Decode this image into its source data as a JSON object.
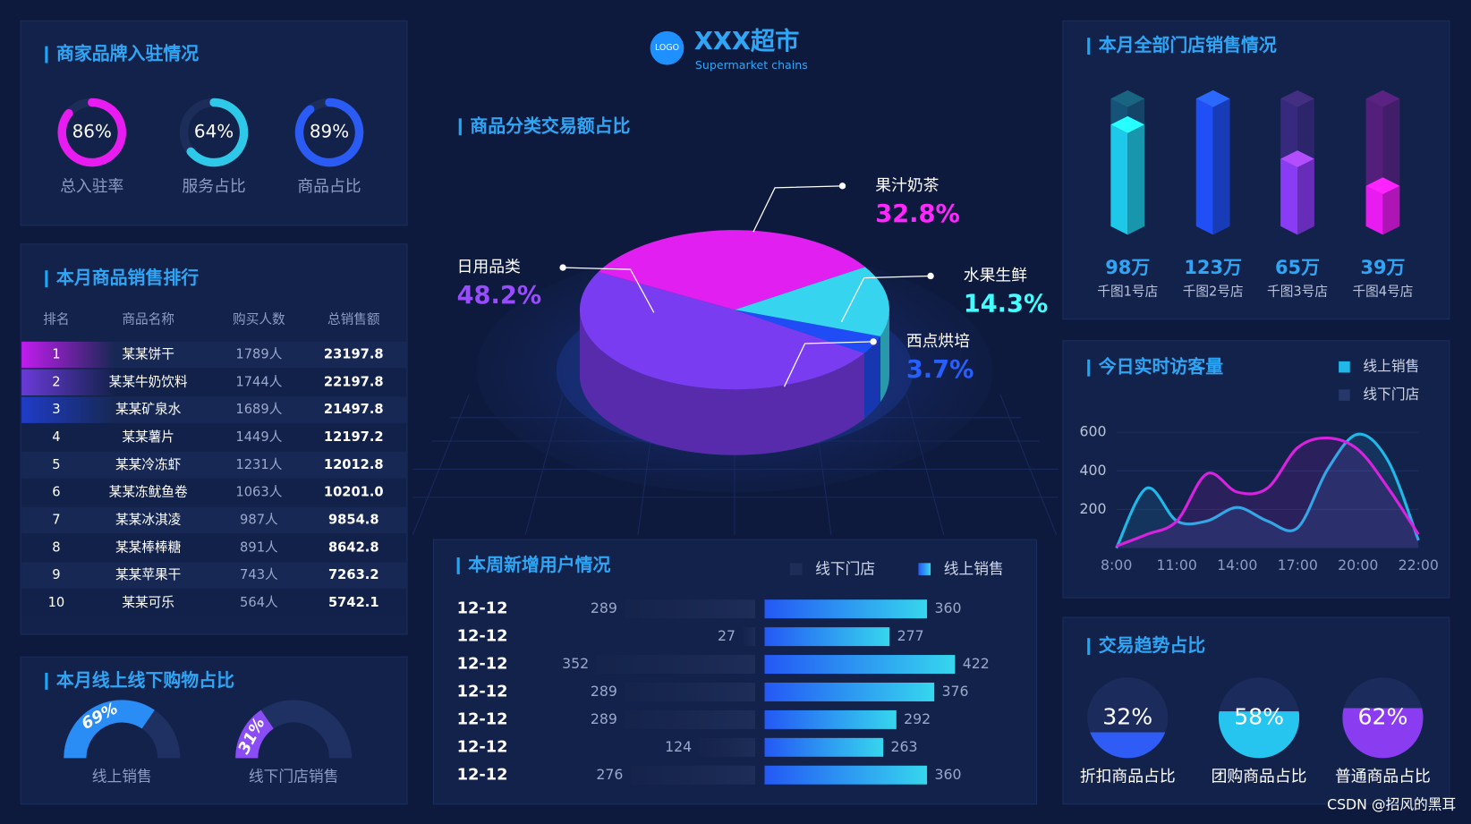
{
  "header": {
    "logo": "LOGO",
    "title": "XXX超市",
    "subtitle": "Supermarket chains"
  },
  "table": {
    "title": "本月商品销售排行",
    "columns": [
      "排名",
      "商品名称",
      "购买人数",
      "总销售额"
    ],
    "rows": [
      [
        "1",
        "某某饼干",
        "1789人",
        "23197.8"
      ],
      [
        "2",
        "某某牛奶饮料",
        "1744人",
        "22197.8"
      ],
      [
        "3",
        "某某矿泉水",
        "1689人",
        "21497.8"
      ],
      [
        "4",
        "某某薯片",
        "1449人",
        "12197.2"
      ],
      [
        "5",
        "某某冷冻虾",
        "1231人",
        "12012.8"
      ],
      [
        "6",
        "某某冻鱿鱼卷",
        "1063人",
        "10201.0"
      ],
      [
        "7",
        "某某冰淇凌",
        "987人",
        "9854.8"
      ],
      [
        "8",
        "某某棒棒糖",
        "891人",
        "8642.8"
      ],
      [
        "9",
        "某某苹果干",
        "743人",
        "7263.2"
      ],
      [
        "10",
        "某某可乐",
        "564人",
        "5742.1"
      ]
    ]
  },
  "chart_data": [
    {
      "type": "ring",
      "title": "商家品牌入驻情况",
      "categories": [
        "总入驻率",
        "服务占比",
        "商品占比"
      ],
      "values": [
        86,
        64,
        89
      ],
      "value_labels": [
        "86%",
        "64%",
        "89%"
      ],
      "colors": [
        "#e81cf0",
        "#2ec8e8",
        "#2a5cf5"
      ]
    },
    {
      "type": "half-ring",
      "title": "本月线上线下购物占比",
      "categories": [
        "线上销售",
        "线下门店销售"
      ],
      "values": [
        69,
        31
      ],
      "value_labels": [
        "69%",
        "31%"
      ],
      "colors": [
        "#2a8cf5",
        "#8a4cf5"
      ]
    },
    {
      "type": "pie",
      "title": "商品分类交易额占比",
      "categories": [
        "日用品类",
        "果汁奶茶",
        "水果生鲜",
        "西点烘培"
      ],
      "values": [
        48.2,
        32.8,
        14.3,
        3.7
      ],
      "value_labels": [
        "48.2%",
        "32.8%",
        "14.3%",
        "3.7%"
      ],
      "colors": [
        "#7a3cf0",
        "#e11ff0",
        "#36d4ee",
        "#1f4cf5"
      ]
    },
    {
      "type": "diverging-bar",
      "title": "本周新增用户情况",
      "categories": [
        "12-12",
        "12-12",
        "12-12",
        "12-12",
        "12-12",
        "12-12",
        "12-12"
      ],
      "series": [
        {
          "name": "线下门店",
          "color": "#1e2d58",
          "values": [
            289,
            27,
            352,
            289,
            289,
            124,
            276
          ]
        },
        {
          "name": "线上销售",
          "color": "#2a7af5",
          "values": [
            360,
            277,
            422,
            376,
            292,
            263,
            360
          ]
        }
      ]
    },
    {
      "type": "prism-bar",
      "title": "本月全部门店销售情况",
      "categories": [
        "千图1号店",
        "千图2号店",
        "千图3号店",
        "千图4号店"
      ],
      "values": [
        98,
        123,
        65,
        39
      ],
      "value_labels": [
        "98万",
        "123万",
        "65万",
        "39万"
      ],
      "colors": [
        "#1ec8e8",
        "#2050f5",
        "#8a3cf5",
        "#e81cf0"
      ]
    },
    {
      "type": "line",
      "title": "今日实时访客量",
      "categories": [
        "8:00",
        null,
        "11:00",
        null,
        "14:00",
        null,
        "17:00",
        null,
        "20:00",
        null,
        "22:00"
      ],
      "series": [
        {
          "name": "线上销售",
          "color": "#1fb8e8",
          "values": [
            0,
            310,
            140,
            140,
            210,
            140,
            105,
            410,
            590,
            450,
            40
          ]
        },
        {
          "name": "线下门店",
          "color": "#d822e0",
          "values": [
            10,
            70,
            140,
            385,
            290,
            310,
            520,
            570,
            510,
            310,
            70
          ]
        }
      ],
      "ylim": [
        0,
        700
      ],
      "yticks": [
        200,
        400,
        600
      ],
      "grid": true
    },
    {
      "type": "liquid",
      "title": "交易趋势占比",
      "categories": [
        "折扣商品占比",
        "团购商品占比",
        "普通商品占比"
      ],
      "values": [
        32,
        58,
        62
      ],
      "value_labels": [
        "32%",
        "58%",
        "62%"
      ],
      "colors": [
        "#2f5cf5",
        "#25c5ef",
        "#8a3cf0"
      ]
    }
  ],
  "watermark": "CSDN @招风的黑耳"
}
